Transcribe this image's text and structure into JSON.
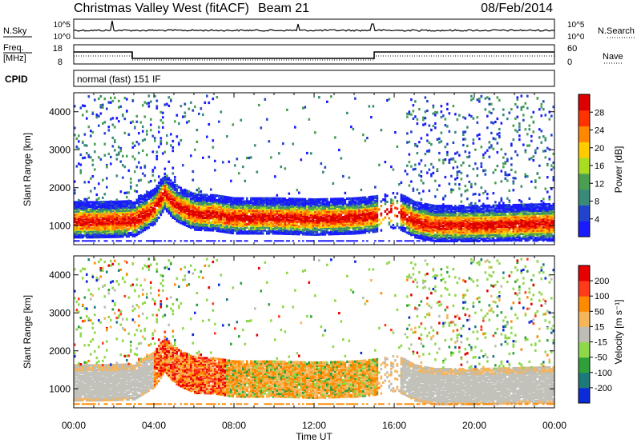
{
  "header": {
    "title": "Christmas Valley West (fitACF)",
    "beam": "Beam 21",
    "date": "08/Feb/2014"
  },
  "params": {
    "nsky_label": "N.Sky",
    "nsky_ticks": [
      "10^5",
      "10^0"
    ],
    "nsearch_label": "N.Search",
    "freq_label_line1": "Freq.",
    "freq_label_line2": "[MHz]",
    "freq_ticks": [
      "18",
      "8"
    ],
    "nave_label": "Nave",
    "nave_ticks": [
      "60",
      "0"
    ],
    "cpid_label": "CPID",
    "cpid_text": "normal (fast) 151 IF"
  },
  "colors": {
    "power_scale": [
      "#1a1aff",
      "#2244cc",
      "#3a8a7a",
      "#4aa050",
      "#aadd22",
      "#ffcc00",
      "#ff8800",
      "#ff3300",
      "#dd0000"
    ],
    "velocity_scale": [
      "#0b2bd9",
      "#1e7a7a",
      "#2fa03a",
      "#8fd84a",
      "#bdbdb5",
      "#f7b55a",
      "#ff8a00",
      "#ff3b1a",
      "#e60000"
    ],
    "ground_scatter": "#c2c2ba"
  },
  "chart_data": [
    {
      "type": "heatmap",
      "name": "power",
      "ylabel": "Slant Range [km]",
      "xlabel": "Time UT",
      "x_ticks": [
        "00:00",
        "04:00",
        "08:00",
        "12:00",
        "16:00",
        "20:00",
        "00:00"
      ],
      "y_ticks": [
        "1000",
        "2000",
        "3000",
        "4000"
      ],
      "ylim": [
        500,
        4500
      ],
      "colorbar": {
        "label": "Power [dB]",
        "ticks": [
          "28",
          "24",
          "20",
          "16",
          "12",
          "8",
          "4"
        ]
      },
      "main_band": [
        {
          "t": 0,
          "r": 1150
        },
        {
          "t": 1,
          "r": 1150
        },
        {
          "t": 2,
          "r": 1160
        },
        {
          "t": 3,
          "r": 1180
        },
        {
          "t": 4,
          "r": 1500
        },
        {
          "t": 4.5,
          "r": 1900
        },
        {
          "t": 5,
          "r": 1600
        },
        {
          "t": 6,
          "r": 1350
        },
        {
          "t": 7,
          "r": 1330
        },
        {
          "t": 8,
          "r": 1250
        },
        {
          "t": 10,
          "r": 1250
        },
        {
          "t": 12,
          "r": 1220
        },
        {
          "t": 14,
          "r": 1250
        },
        {
          "t": 15,
          "r": 1300
        },
        {
          "t": 16,
          "r": 1400
        },
        {
          "t": 16.5,
          "r": 1300
        },
        {
          "t": 17,
          "r": 1150
        },
        {
          "t": 18,
          "r": 1050
        },
        {
          "t": 20,
          "r": 1050
        },
        {
          "t": 24,
          "r": 1100
        }
      ]
    },
    {
      "type": "heatmap",
      "name": "velocity",
      "ylabel": "Slant Range [km]",
      "xlabel": "Time UT",
      "x_ticks": [
        "00:00",
        "04:00",
        "08:00",
        "12:00",
        "16:00",
        "20:00",
        "00:00"
      ],
      "y_ticks": [
        "1000",
        "2000",
        "3000",
        "4000"
      ],
      "ylim": [
        500,
        4500
      ],
      "colorbar": {
        "label": "Velocity [m s⁻¹]",
        "ticks": [
          "200",
          "100",
          "50",
          "15",
          "-15",
          "-50",
          "-100",
          "-200"
        ]
      }
    }
  ]
}
